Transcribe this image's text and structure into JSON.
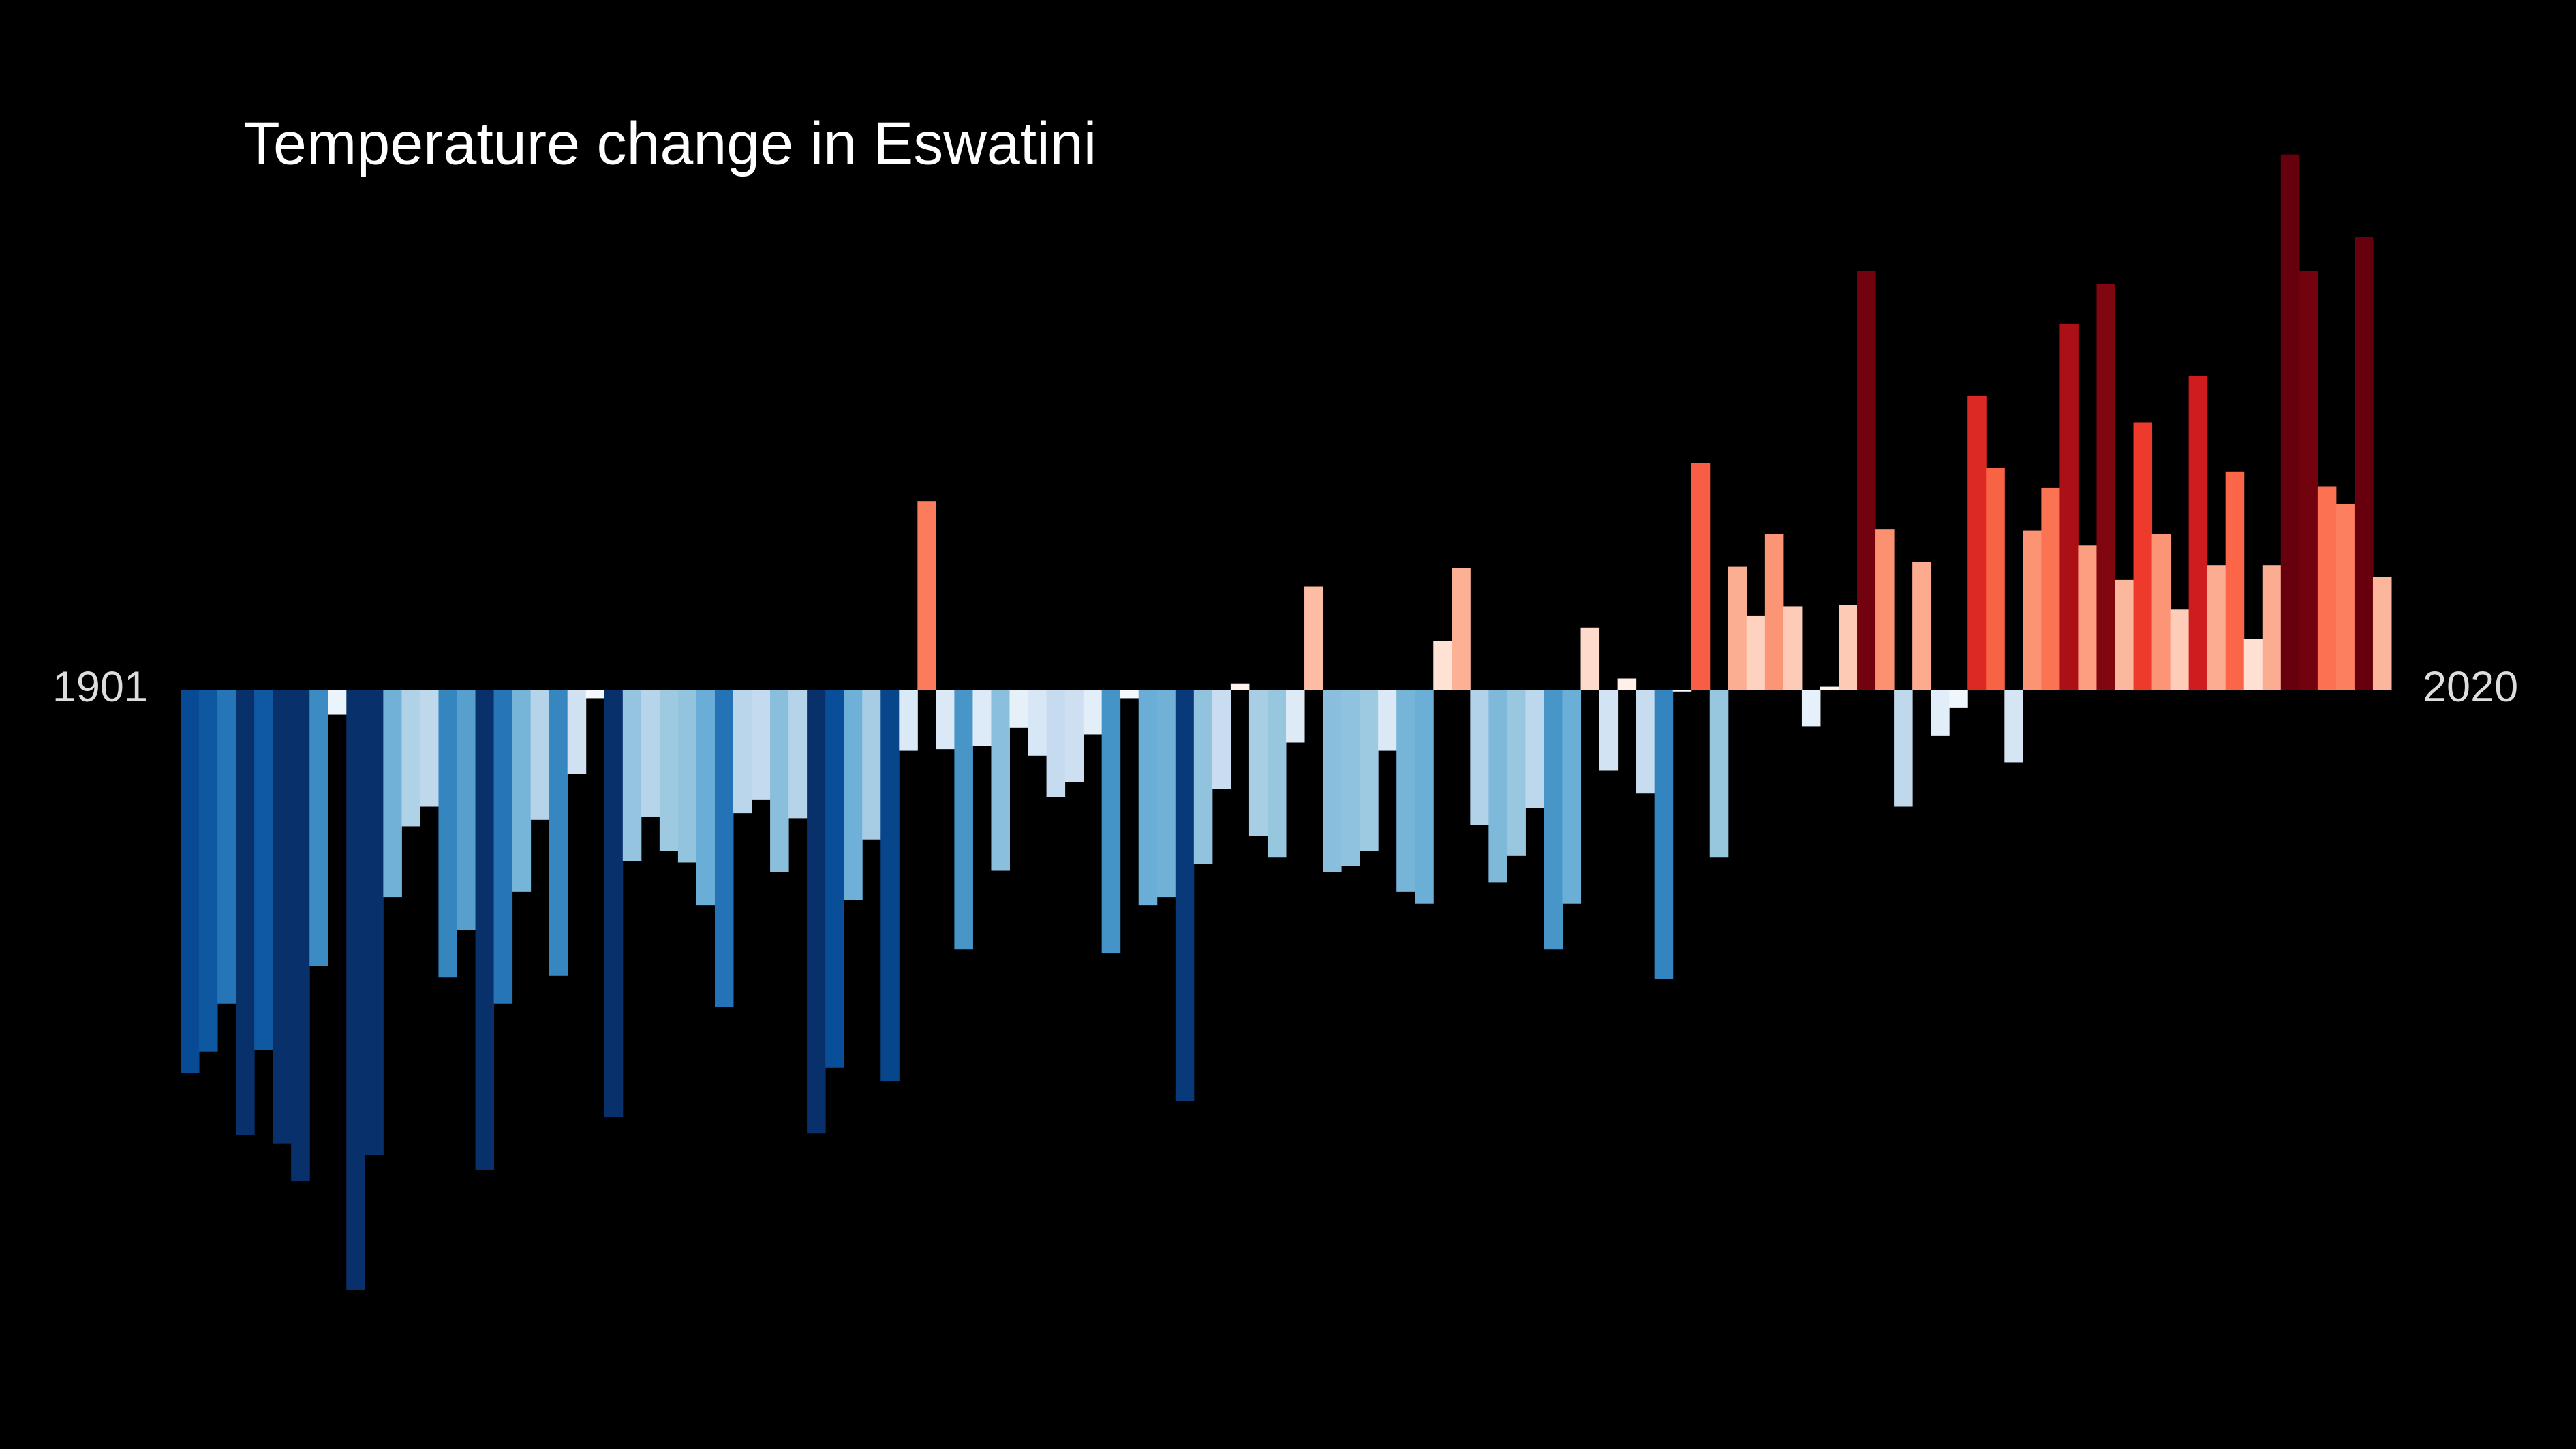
{
  "chart_data": {
    "type": "bar",
    "title": "Temperature change in Eswatini",
    "categories": [
      "1901",
      null,
      null,
      null,
      null,
      null,
      null,
      null,
      null,
      null,
      null,
      null,
      null,
      null,
      null,
      null,
      null,
      null,
      null,
      null,
      null,
      null,
      null,
      null,
      null,
      null,
      null,
      null,
      null,
      null,
      null,
      null,
      null,
      null,
      null,
      null,
      null,
      null,
      null,
      null,
      null,
      null,
      null,
      null,
      null,
      null,
      null,
      null,
      null,
      null,
      null,
      null,
      null,
      null,
      null,
      null,
      null,
      null,
      null,
      null,
      null,
      null,
      null,
      null,
      null,
      null,
      null,
      null,
      null,
      null,
      null,
      null,
      null,
      null,
      null,
      null,
      null,
      null,
      null,
      null,
      null,
      null,
      null,
      null,
      null,
      null,
      null,
      null,
      null,
      null,
      null,
      null,
      null,
      null,
      null,
      null,
      null,
      null,
      null,
      null,
      null,
      null,
      null,
      null,
      null,
      null,
      null,
      null,
      null,
      null,
      null,
      null,
      null,
      null,
      null,
      null,
      null,
      null,
      null,
      "2020"
    ],
    "values": [
      -2.33,
      -2.2,
      -1.91,
      -2.71,
      -2.19,
      -2.76,
      -2.99,
      -1.68,
      -0.15,
      -3.65,
      -2.83,
      -1.26,
      -0.83,
      -0.71,
      -1.75,
      -1.46,
      -2.92,
      -1.91,
      -1.23,
      -0.79,
      -1.74,
      -0.51,
      -0.05,
      -2.6,
      -1.04,
      -0.77,
      -0.98,
      -1.05,
      -1.31,
      -1.93,
      -0.75,
      -0.67,
      -1.11,
      -0.78,
      -2.7,
      -2.3,
      -1.28,
      -0.91,
      -2.38,
      -0.37,
      1.15,
      -0.36,
      -1.58,
      -0.34,
      -1.1,
      -0.23,
      -0.4,
      -0.65,
      -0.56,
      -0.27,
      -1.6,
      -0.05,
      -1.31,
      -1.26,
      -2.5,
      -1.06,
      -0.6,
      0.04,
      -0.89,
      -1.02,
      -0.32,
      0.63,
      -1.11,
      -1.07,
      -0.98,
      -0.37,
      -1.23,
      -1.3,
      0.3,
      0.74,
      -0.82,
      -1.17,
      -1.01,
      -0.72,
      -1.58,
      -1.3,
      0.38,
      -0.49,
      0.07,
      -0.63,
      -1.76,
      -0.01,
      1.38,
      -1.02,
      0.75,
      0.45,
      0.95,
      0.51,
      -0.22,
      0.02,
      0.52,
      2.55,
      0.98,
      -0.71,
      0.78,
      -0.28,
      -0.11,
      1.79,
      1.35,
      -0.44,
      0.97,
      1.23,
      2.23,
      0.88,
      2.47,
      0.67,
      1.63,
      0.95,
      0.49,
      1.91,
      0.76,
      1.33,
      0.31,
      0.76,
      3.26,
      2.55,
      1.24,
      1.13,
      2.76,
      0.69
    ],
    "ylim": [
      -4.62,
      4.2
    ]
  }
}
